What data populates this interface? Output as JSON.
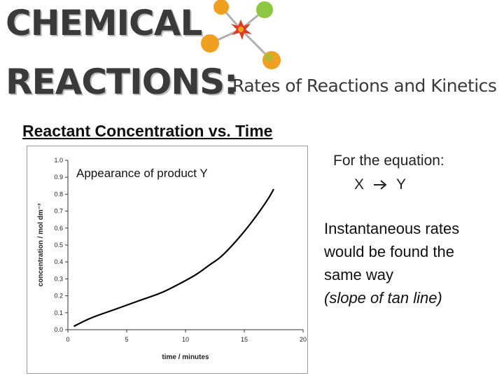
{
  "banner": {
    "title_line1": "CHEMICAL",
    "title_line2": "REACTIONS:",
    "subtitle": "Rates of Reactions and Kinetics",
    "logo_icon": "molecule-icon",
    "colors": {
      "atom_orange": "#f0a020",
      "atom_green": "#8dc63f",
      "atom_red": "#e23a1e",
      "bond": "#b0b0b0"
    }
  },
  "heading": "Reactant Concentration vs. Time",
  "chart_data": {
    "type": "line",
    "annotation": "Appearance of product Y",
    "xlabel": "time / minutes",
    "ylabel": "concentration / mol dm⁻³",
    "xlim": [
      0,
      20
    ],
    "ylim": [
      0,
      1.0
    ],
    "x_ticks": [
      "0",
      "5",
      "10",
      "15",
      "20"
    ],
    "y_ticks": [
      "0.0",
      "0.1",
      "0.2",
      "0.3",
      "0.4",
      "0.5",
      "0.6",
      "0.7",
      "0.8",
      "0.9",
      "1.0"
    ],
    "grid": false,
    "series": [
      {
        "x": [
          0.5,
          2,
          4,
          6,
          8,
          10,
          11,
          12,
          13,
          14,
          15,
          16,
          17,
          17.5
        ],
        "y": [
          0.02,
          0.07,
          0.12,
          0.17,
          0.22,
          0.29,
          0.33,
          0.38,
          0.43,
          0.5,
          0.58,
          0.67,
          0.77,
          0.83
        ],
        "color": "#000000"
      }
    ]
  },
  "equation": {
    "intro": "For the equation:",
    "reactant": "X",
    "arrow_icon": "right-arrow-icon",
    "product": "Y"
  },
  "notes": {
    "line1": "Instantaneous rates",
    "line2": "would be found the",
    "line3": "same way",
    "line4": "(slope of tan line)"
  }
}
